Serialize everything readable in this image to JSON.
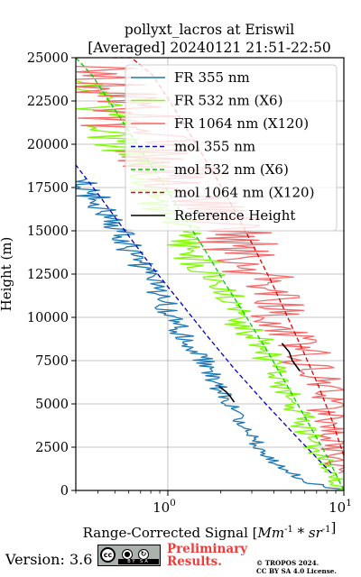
{
  "title_line1": "pollyxt_lacros at Eriswil",
  "title_line2": "[Averaged] 20240121 21:51-22:50",
  "footer": {
    "version": "Version: 3.6",
    "cc_logo": "cc",
    "cc_strip": "BY SA",
    "preliminary_line1": "Preliminary",
    "preliminary_line2": "Results.",
    "copyright_line1": "© TROPOS 2024.",
    "copyright_line2": "CC BY SA 4.0 License."
  },
  "chart_data": {
    "type": "line",
    "title": "pollyxt_lacros at Eriswil\n[Averaged] 20240121 21:51-22:50",
    "xlabel": "Range-Corrected Signal [Mm^-1 * sr^-1]",
    "ylabel": "Height (m)",
    "xscale": "log",
    "xlim": [
      0.3,
      10
    ],
    "ylim": [
      0,
      25000
    ],
    "xticks": [
      1,
      10
    ],
    "yticks": [
      0,
      2500,
      5000,
      7500,
      10000,
      12500,
      15000,
      17500,
      20000,
      22500,
      25000
    ],
    "grid": true,
    "legend_position": "top-right",
    "series": [
      {
        "name": "FR 355 nm",
        "color": "#1f77b4",
        "style": "solid",
        "x": [
          10,
          6,
          3.6,
          2.8,
          2.2,
          1.8,
          1.5,
          1.2,
          1.0,
          0.82,
          0.66,
          0.52,
          0.42,
          0.34,
          0.3
        ],
        "y": [
          0,
          500,
          2000,
          3500,
          5000,
          6500,
          8000,
          9000,
          10500,
          12000,
          13500,
          15000,
          16500,
          17500,
          18000
        ]
      },
      {
        "name": "FR 532 nm (X6)",
        "color": "#7cfc00",
        "style": "solid",
        "x": [
          10,
          8,
          6.5,
          5.3,
          4.4,
          3.5,
          2.6,
          2.0,
          1.6,
          1.2,
          0.95,
          0.7,
          0.5,
          0.38,
          0.3
        ],
        "y": [
          0,
          1500,
          3000,
          5000,
          6500,
          8000,
          10000,
          11500,
          13000,
          15000,
          16500,
          18500,
          20500,
          22500,
          24000
        ]
      },
      {
        "name": "FR 1064 nm (X120)",
        "color": "#f46a6a",
        "style": "solid",
        "x": [
          10,
          9.5,
          8.5,
          7.5,
          6.2,
          5.2,
          4.3,
          3.5,
          2.8,
          2.3,
          1.8,
          1.3,
          0.95,
          0.7,
          0.5,
          0.35
        ],
        "y": [
          1000,
          2500,
          4500,
          6000,
          7500,
          9000,
          10500,
          12000,
          13500,
          15000,
          16000,
          17500,
          19000,
          20500,
          22500,
          24500
        ]
      },
      {
        "name": "mol 355 nm",
        "color": "#0000cc",
        "style": "dashed",
        "x": [
          8.5,
          5.5,
          3.6,
          2.4,
          1.65,
          1.15,
          0.8,
          0.57,
          0.41,
          0.3
        ],
        "y": [
          1000,
          3000,
          5000,
          7000,
          9000,
          11000,
          13000,
          15000,
          17000,
          18800
        ]
      },
      {
        "name": "mol 532 nm (X6)",
        "color": "#00cc00",
        "style": "dashed",
        "x": [
          10,
          8,
          6.2,
          4.8,
          3.7,
          2.8,
          2.1,
          1.6,
          1.2,
          0.9,
          0.67,
          0.5,
          0.37,
          0.3
        ],
        "y": [
          0,
          2000,
          4000,
          6000,
          8000,
          10000,
          12000,
          14000,
          16000,
          18000,
          20000,
          22000,
          24000,
          25000
        ]
      },
      {
        "name": "mol 1064 nm (X120)",
        "color": "#dd0000",
        "style": "dashed",
        "x": [
          10,
          8.6,
          7.2,
          5.9,
          4.8,
          3.9,
          3.1,
          2.45,
          1.9,
          1.45,
          1.1,
          0.82,
          0.62,
          0.49
        ],
        "y": [
          2000,
          4000,
          6000,
          8000,
          10000,
          12000,
          14000,
          16000,
          18000,
          20000,
          22000,
          24000,
          25000,
          25000
        ]
      },
      {
        "name": "Reference Height",
        "color": "#000000",
        "style": "solid",
        "x": [
          2.0,
          2.15,
          2.3,
          2.45,
          4.5,
          4.8,
          5.1,
          5.5
        ],
        "y": [
          6000,
          5700,
          5400,
          5100,
          8500,
          8000,
          7500,
          6900
        ]
      }
    ]
  }
}
